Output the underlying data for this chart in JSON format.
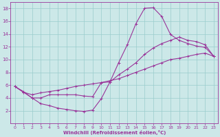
{
  "xlabel": "Windchill (Refroidissement éolien,°C)",
  "bg_color": "#cce8e8",
  "grid_color": "#99cccc",
  "line_color": "#993399",
  "spine_color": "#993399",
  "xlim": [
    -0.5,
    23.5
  ],
  "ylim": [
    0,
    19
  ],
  "xticks": [
    0,
    1,
    2,
    3,
    4,
    5,
    6,
    7,
    8,
    9,
    10,
    11,
    12,
    13,
    14,
    15,
    16,
    17,
    18,
    19,
    20,
    21,
    22,
    23
  ],
  "yticks": [
    2,
    4,
    6,
    8,
    10,
    12,
    14,
    16,
    18
  ],
  "ytick_labels": [
    "2",
    "4",
    "6",
    "8",
    "10",
    "12",
    "14",
    "16",
    "18"
  ],
  "line1_x": [
    0,
    1,
    2,
    3,
    4,
    5,
    6,
    7,
    8,
    9,
    10,
    11,
    12,
    13,
    14,
    15,
    16,
    17,
    18,
    19,
    20,
    21,
    22,
    23
  ],
  "line1_y": [
    5.8,
    4.9,
    4.0,
    3.1,
    2.8,
    2.4,
    2.2,
    2.0,
    1.9,
    2.1,
    3.9,
    6.5,
    9.5,
    12.3,
    15.6,
    18.0,
    18.1,
    16.7,
    13.9,
    13.0,
    12.5,
    12.1,
    11.9,
    10.5
  ],
  "line2_x": [
    0,
    1,
    2,
    3,
    4,
    5,
    6,
    7,
    8,
    9,
    10,
    11,
    12,
    13,
    14,
    15,
    16,
    17,
    18,
    19,
    20,
    21,
    22,
    23
  ],
  "line2_y": [
    5.8,
    4.9,
    4.5,
    4.8,
    5.0,
    5.2,
    5.5,
    5.8,
    6.0,
    6.2,
    6.4,
    6.7,
    7.0,
    7.5,
    8.0,
    8.5,
    9.0,
    9.5,
    10.0,
    10.2,
    10.5,
    10.8,
    11.0,
    10.5
  ],
  "line3_x": [
    0,
    1,
    2,
    3,
    4,
    5,
    6,
    7,
    8,
    9,
    10,
    11,
    12,
    13,
    14,
    15,
    16,
    17,
    18,
    19,
    20,
    21,
    22,
    23
  ],
  "line3_y": [
    5.8,
    5.0,
    4.0,
    4.0,
    4.5,
    4.5,
    4.5,
    4.5,
    4.3,
    4.2,
    6.4,
    6.5,
    7.6,
    8.5,
    9.5,
    10.8,
    11.8,
    12.5,
    13.0,
    13.5,
    13.0,
    12.8,
    12.3,
    10.5
  ]
}
